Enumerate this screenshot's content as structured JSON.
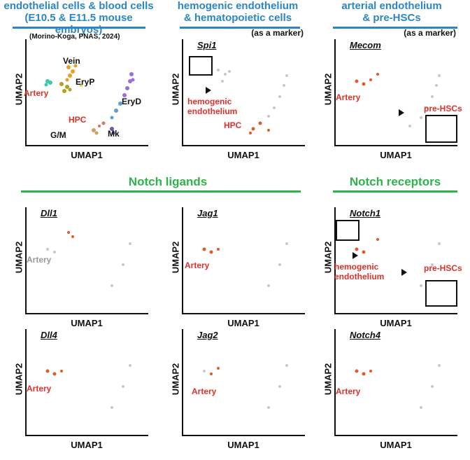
{
  "headers": {
    "col1": "endothelial cells & blood cells\n(E10.5 & E11.5 mouse embryos)",
    "col2": "hemogenic endothelium\n& hematopoietic cells",
    "col3": "arterial endothelium\n& pre-HSCs",
    "notch_ligands": "Notch ligands",
    "notch_receptors": "Notch receptors"
  },
  "citation": "(Morino-Koga, PNAS, 2024)",
  "marker_note": "(as a marker)",
  "axes": {
    "x": "UMAP1",
    "y": "UMAP2"
  },
  "clusters": {
    "vein": "Vein",
    "artery": "Artery",
    "eryp": "EryP",
    "eryd": "EryD",
    "hpc": "HPC",
    "gm": "G/M",
    "mk": "Mk"
  },
  "panels": {
    "spi1": {
      "gene": "Spi1",
      "labels": [
        "hemogenic",
        "endothelium",
        "HPC"
      ]
    },
    "mecom": {
      "gene": "Mecom",
      "labels": [
        "Artery",
        "pre-HSCs"
      ]
    },
    "dll1": {
      "gene": "Dll1",
      "labels": [
        "Artery"
      ]
    },
    "jag1": {
      "gene": "Jag1",
      "labels": [
        "Artery"
      ]
    },
    "notch1": {
      "gene": "Notch1",
      "labels": [
        "hemogenic",
        "endothelium",
        "pre-HSCs"
      ]
    },
    "dll4": {
      "gene": "Dll4",
      "labels": [
        "Artery"
      ]
    },
    "jag2": {
      "gene": "Jag2",
      "labels": [
        "Artery"
      ]
    },
    "notch4": {
      "gene": "Notch4",
      "labels": [
        "Artery"
      ]
    }
  },
  "colors": {
    "header_blue": "#2b86c4",
    "header_green": "#2fb24c",
    "label_red": "#e0302a",
    "expr": "#e05a2a",
    "base": "#c8c8c8"
  }
}
